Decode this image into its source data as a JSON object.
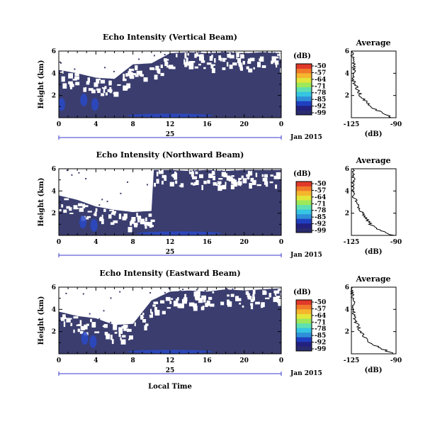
{
  "figure": {
    "xlabel": "Local Time",
    "colorbar_unit": "(dB)",
    "colorbar_ticks": [
      "-50",
      "-57",
      "-64",
      "-71",
      "-78",
      "-85",
      "-92",
      "-99"
    ],
    "colorbar_colors": [
      "#2a2c6e",
      "#23207f",
      "#1f3fc0",
      "#2f8fd8",
      "#36c5e2",
      "#5fe0b0",
      "#9ee85a",
      "#e2e63a",
      "#f5b62e",
      "#f07a2a",
      "#e0392a"
    ],
    "background_color": "#3a3d6e",
    "nodata_color": "#ffffff",
    "date_label": "Jan 2015",
    "date_tick_label": "25"
  },
  "chart_data": [
    {
      "type": "heatmap",
      "title": "Echo Intensity (Vertical Beam)",
      "ylabel": "Height (km)",
      "x_ticks": [
        "0",
        "4",
        "8",
        "12",
        "16",
        "20",
        "0"
      ],
      "y_ticks": [
        "6",
        "4",
        "2"
      ],
      "xlim": [
        0,
        24
      ],
      "ylim": [
        0,
        6
      ],
      "zlim": [
        -99,
        -50
      ],
      "value_unit": "dB",
      "background_level": -97,
      "data_coverage_top_km": [
        {
          "hour": 0,
          "km": 4.3
        },
        {
          "hour": 2,
          "km": 4.0
        },
        {
          "hour": 4,
          "km": 3.6
        },
        {
          "hour": 6,
          "km": 3.5
        },
        {
          "hour": 8,
          "km": 4.8
        },
        {
          "hour": 10,
          "km": 4.9
        },
        {
          "hour": 12,
          "km": 5.8
        },
        {
          "hour": 14,
          "km": 5.9
        },
        {
          "hour": 16,
          "km": 5.8
        },
        {
          "hour": 18,
          "km": 5.9
        },
        {
          "hour": 20,
          "km": 5.8
        },
        {
          "hour": 22,
          "km": 5.9
        },
        {
          "hour": 24,
          "km": 5.8
        }
      ],
      "enhanced_echo_patches": [
        {
          "hour": 3.9,
          "km": 1.2,
          "db": -88
        },
        {
          "hour": 2.7,
          "km": 1.6,
          "db": -88
        },
        {
          "hour": 0.3,
          "km": 1.2,
          "db": -90
        },
        {
          "hour": 12,
          "km": 0.2,
          "db": -90
        }
      ],
      "average_profile": {
        "title": "Average",
        "xlabel": "(dB)",
        "x_ticks": [
          "-125",
          "-90"
        ],
        "y_ticks": [
          "6",
          "4",
          "2"
        ],
        "xlim": [
          -125,
          -90
        ],
        "ylim": [
          0,
          6
        ],
        "height_km": [
          0,
          0.5,
          1,
          1.5,
          2,
          2.5,
          3,
          3.5,
          4,
          4.5,
          5,
          5.5,
          6
        ],
        "db": [
          -93,
          -102,
          -110,
          -114,
          -118,
          -120,
          -122,
          -124,
          -123,
          -123,
          -123,
          -124,
          -124
        ]
      }
    },
    {
      "type": "heatmap",
      "title": "Echo Intensity (Northward Beam)",
      "ylabel": "Height (km)",
      "x_ticks": [
        "0",
        "4",
        "8",
        "12",
        "16",
        "20",
        "0"
      ],
      "y_ticks": [
        "6",
        "4",
        "2"
      ],
      "xlim": [
        0,
        24
      ],
      "ylim": [
        0,
        6
      ],
      "zlim": [
        -99,
        -50
      ],
      "value_unit": "dB",
      "background_level": -97,
      "data_coverage_top_km": [
        {
          "hour": 0,
          "km": 3.6
        },
        {
          "hour": 2,
          "km": 3.2
        },
        {
          "hour": 4,
          "km": 2.6
        },
        {
          "hour": 6,
          "km": 2.3
        },
        {
          "hour": 8,
          "km": 2.1
        },
        {
          "hour": 10,
          "km": 2.2
        },
        {
          "hour": 10.1,
          "km": 5.9
        },
        {
          "hour": 12,
          "km": 5.9
        },
        {
          "hour": 14,
          "km": 5.8
        },
        {
          "hour": 16,
          "km": 5.9
        },
        {
          "hour": 18,
          "km": 5.8
        },
        {
          "hour": 20,
          "km": 5.9
        },
        {
          "hour": 24,
          "km": 5.9
        }
      ],
      "enhanced_echo_patches": [
        {
          "hour": 3.8,
          "km": 0.9,
          "db": -88
        },
        {
          "hour": 2.6,
          "km": 1.2,
          "db": -88
        },
        {
          "hour": 13,
          "km": 0.2,
          "db": -90
        }
      ],
      "average_profile": {
        "title": "Average",
        "xlabel": "(dB)",
        "x_ticks": [
          "-125",
          "-90"
        ],
        "y_ticks": [
          "6",
          "4",
          "2"
        ],
        "xlim": [
          -125,
          -90
        ],
        "ylim": [
          0,
          6
        ],
        "height_km": [
          0,
          0.5,
          1,
          1.5,
          2,
          2.5,
          3,
          3.5,
          4,
          4.5,
          5,
          5.5,
          6
        ],
        "db": [
          -92,
          -103,
          -110,
          -113,
          -116,
          -119,
          -121,
          -123,
          -123,
          -124,
          -123,
          -124,
          -124
        ]
      }
    },
    {
      "type": "heatmap",
      "title": "Echo Intensity (Eastward Beam)",
      "ylabel": "Height (km)",
      "x_ticks": [
        "0",
        "4",
        "8",
        "12",
        "16",
        "20",
        "0"
      ],
      "y_ticks": [
        "6",
        "4",
        "2"
      ],
      "xlim": [
        0,
        24
      ],
      "ylim": [
        0,
        6
      ],
      "zlim": [
        -99,
        -50
      ],
      "value_unit": "dB",
      "background_level": -97,
      "data_coverage_top_km": [
        {
          "hour": 0,
          "km": 3.8
        },
        {
          "hour": 2,
          "km": 3.4
        },
        {
          "hour": 4,
          "km": 3.2
        },
        {
          "hour": 6,
          "km": 2.6
        },
        {
          "hour": 8,
          "km": 2.7
        },
        {
          "hour": 10,
          "km": 4.8
        },
        {
          "hour": 12,
          "km": 5.6
        },
        {
          "hour": 14,
          "km": 5.7
        },
        {
          "hour": 16,
          "km": 5.6
        },
        {
          "hour": 18,
          "km": 5.8
        },
        {
          "hour": 20,
          "km": 5.7
        },
        {
          "hour": 22,
          "km": 5.8
        },
        {
          "hour": 24,
          "km": 5.9
        }
      ],
      "enhanced_echo_patches": [
        {
          "hour": 3.7,
          "km": 1.1,
          "db": -88
        },
        {
          "hour": 2.8,
          "km": 1.4,
          "db": -89
        },
        {
          "hour": 12,
          "km": 0.2,
          "db": -90
        }
      ],
      "average_profile": {
        "title": "Average",
        "xlabel": "(dB)",
        "x_ticks": [
          "-125",
          "-90"
        ],
        "y_ticks": [
          "6",
          "4",
          "2"
        ],
        "xlim": [
          -125,
          -90
        ],
        "ylim": [
          0,
          6
        ],
        "height_km": [
          0,
          0.5,
          1,
          1.5,
          2,
          2.5,
          3,
          3.5,
          4,
          4.5,
          5,
          5.5,
          6
        ],
        "db": [
          -92,
          -102,
          -111,
          -115,
          -118,
          -120,
          -122,
          -123,
          -124,
          -123,
          -124,
          -124,
          -124
        ]
      }
    }
  ]
}
